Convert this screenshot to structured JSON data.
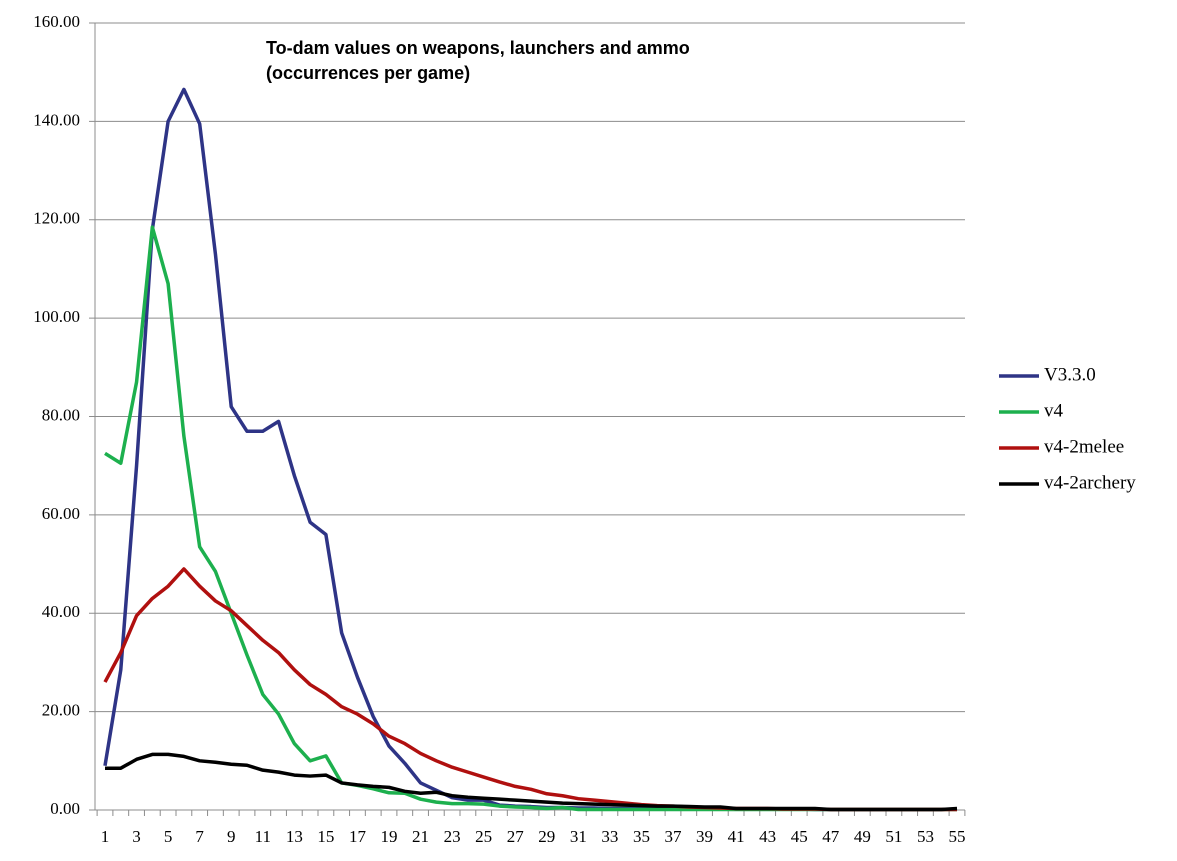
{
  "chart_data": {
    "type": "line",
    "title": "To-dam values on weapons, launchers and ammo",
    "subtitle": "(occurrences per game)",
    "categories": [
      1,
      null,
      3,
      null,
      5,
      null,
      7,
      null,
      9,
      null,
      11,
      null,
      13,
      null,
      15,
      null,
      17,
      null,
      19,
      null,
      21,
      null,
      23,
      null,
      25,
      null,
      27,
      null,
      29,
      null,
      31,
      null,
      33,
      null,
      35,
      null,
      37,
      null,
      39,
      null,
      41,
      null,
      43,
      null,
      45,
      null,
      47,
      null,
      49,
      null,
      51,
      null,
      53,
      null,
      55
    ],
    "series": [
      {
        "name": "V3.3.0",
        "color": "#2e3486",
        "values": [
          9,
          28.5,
          70,
          118,
          140,
          146.5,
          139.5,
          113,
          82,
          77,
          77,
          79,
          68,
          58.5,
          56,
          36,
          27,
          19,
          13,
          9.5,
          5.5,
          4,
          2.5,
          2,
          2,
          1,
          0.8,
          0.7,
          0.5,
          0.5,
          0.4,
          0.4,
          0.3,
          0.3,
          0.3,
          0.3,
          0.3,
          0.2,
          0.2,
          0.2,
          0.2,
          0.2,
          0.2,
          0.2,
          0.2,
          0.1,
          0.1,
          0.1,
          0.1,
          0.1,
          0.1,
          0.1,
          0.1,
          0.1,
          0.2
        ]
      },
      {
        "name": "v4",
        "color": "#1db04e",
        "values": [
          72.5,
          70.5,
          87,
          118.5,
          107,
          76,
          53.5,
          48.5,
          40,
          31.5,
          23.5,
          19.5,
          13.5,
          10,
          11,
          5.5,
          5,
          4.3,
          3.5,
          3.4,
          2.2,
          1.6,
          1.3,
          1.3,
          1.2,
          0.8,
          0.6,
          0.5,
          0.3,
          0.5,
          0.1,
          0.1,
          0.1,
          0.1,
          0.1,
          0.1,
          0.1,
          0.1,
          0.1,
          0.1,
          0.1,
          0.1,
          0.1,
          0.1,
          0.1,
          0.1,
          0.1,
          0.1,
          0.1,
          0.1,
          0.1,
          0.1,
          0.1,
          0.1,
          0.1
        ]
      },
      {
        "name": "v4-2melee",
        "color": "#b0100f",
        "values": [
          26,
          32,
          39.5,
          43,
          45.5,
          49,
          45.5,
          42.5,
          40.5,
          37.5,
          34.5,
          32,
          28.5,
          25.5,
          23.5,
          21,
          19.5,
          17.5,
          15,
          13.5,
          11.5,
          10,
          8.7,
          7.7,
          6.7,
          5.7,
          4.8,
          4.2,
          3.3,
          2.9,
          2.3,
          2,
          1.7,
          1.4,
          1.1,
          0.9,
          0.8,
          0.6,
          0.5,
          0.4,
          0.3,
          0.3,
          0.3,
          0.2,
          0.2,
          0.2,
          0.1,
          0.1,
          0.1,
          0.1,
          0.1,
          0.1,
          0.1,
          0.1,
          0.1
        ]
      },
      {
        "name": "v4-2archery",
        "color": "#000000",
        "values": [
          8.5,
          8.5,
          10.3,
          11.3,
          11.3,
          10.9,
          10,
          9.7,
          9.3,
          9.1,
          8.1,
          7.7,
          7.1,
          6.9,
          7.1,
          5.5,
          5.1,
          4.8,
          4.6,
          3.8,
          3.4,
          3.6,
          2.9,
          2.6,
          2.4,
          2.2,
          2.0,
          1.8,
          1.6,
          1.4,
          1.3,
          1.2,
          1.1,
          1.0,
          0.9,
          0.8,
          0.8,
          0.7,
          0.6,
          0.6,
          0.3,
          0.3,
          0.3,
          0.3,
          0.3,
          0.3,
          0.1,
          0.1,
          0.1,
          0.1,
          0.1,
          0.1,
          0.1,
          0.1,
          0.3
        ]
      }
    ],
    "ylim": [
      0,
      160
    ],
    "yticks": [
      {
        "value": 0,
        "label": "0.00"
      },
      {
        "value": 20,
        "label": "20.00"
      },
      {
        "value": 40,
        "label": "40.00"
      },
      {
        "value": 60,
        "label": "60.00"
      },
      {
        "value": 80,
        "label": "80.00"
      },
      {
        "value": 100,
        "label": "100.00"
      },
      {
        "value": 120,
        "label": "120.00"
      },
      {
        "value": 140,
        "label": "140.00"
      },
      {
        "value": 160,
        "label": "160.00"
      }
    ],
    "grid": true,
    "legend": "right"
  }
}
